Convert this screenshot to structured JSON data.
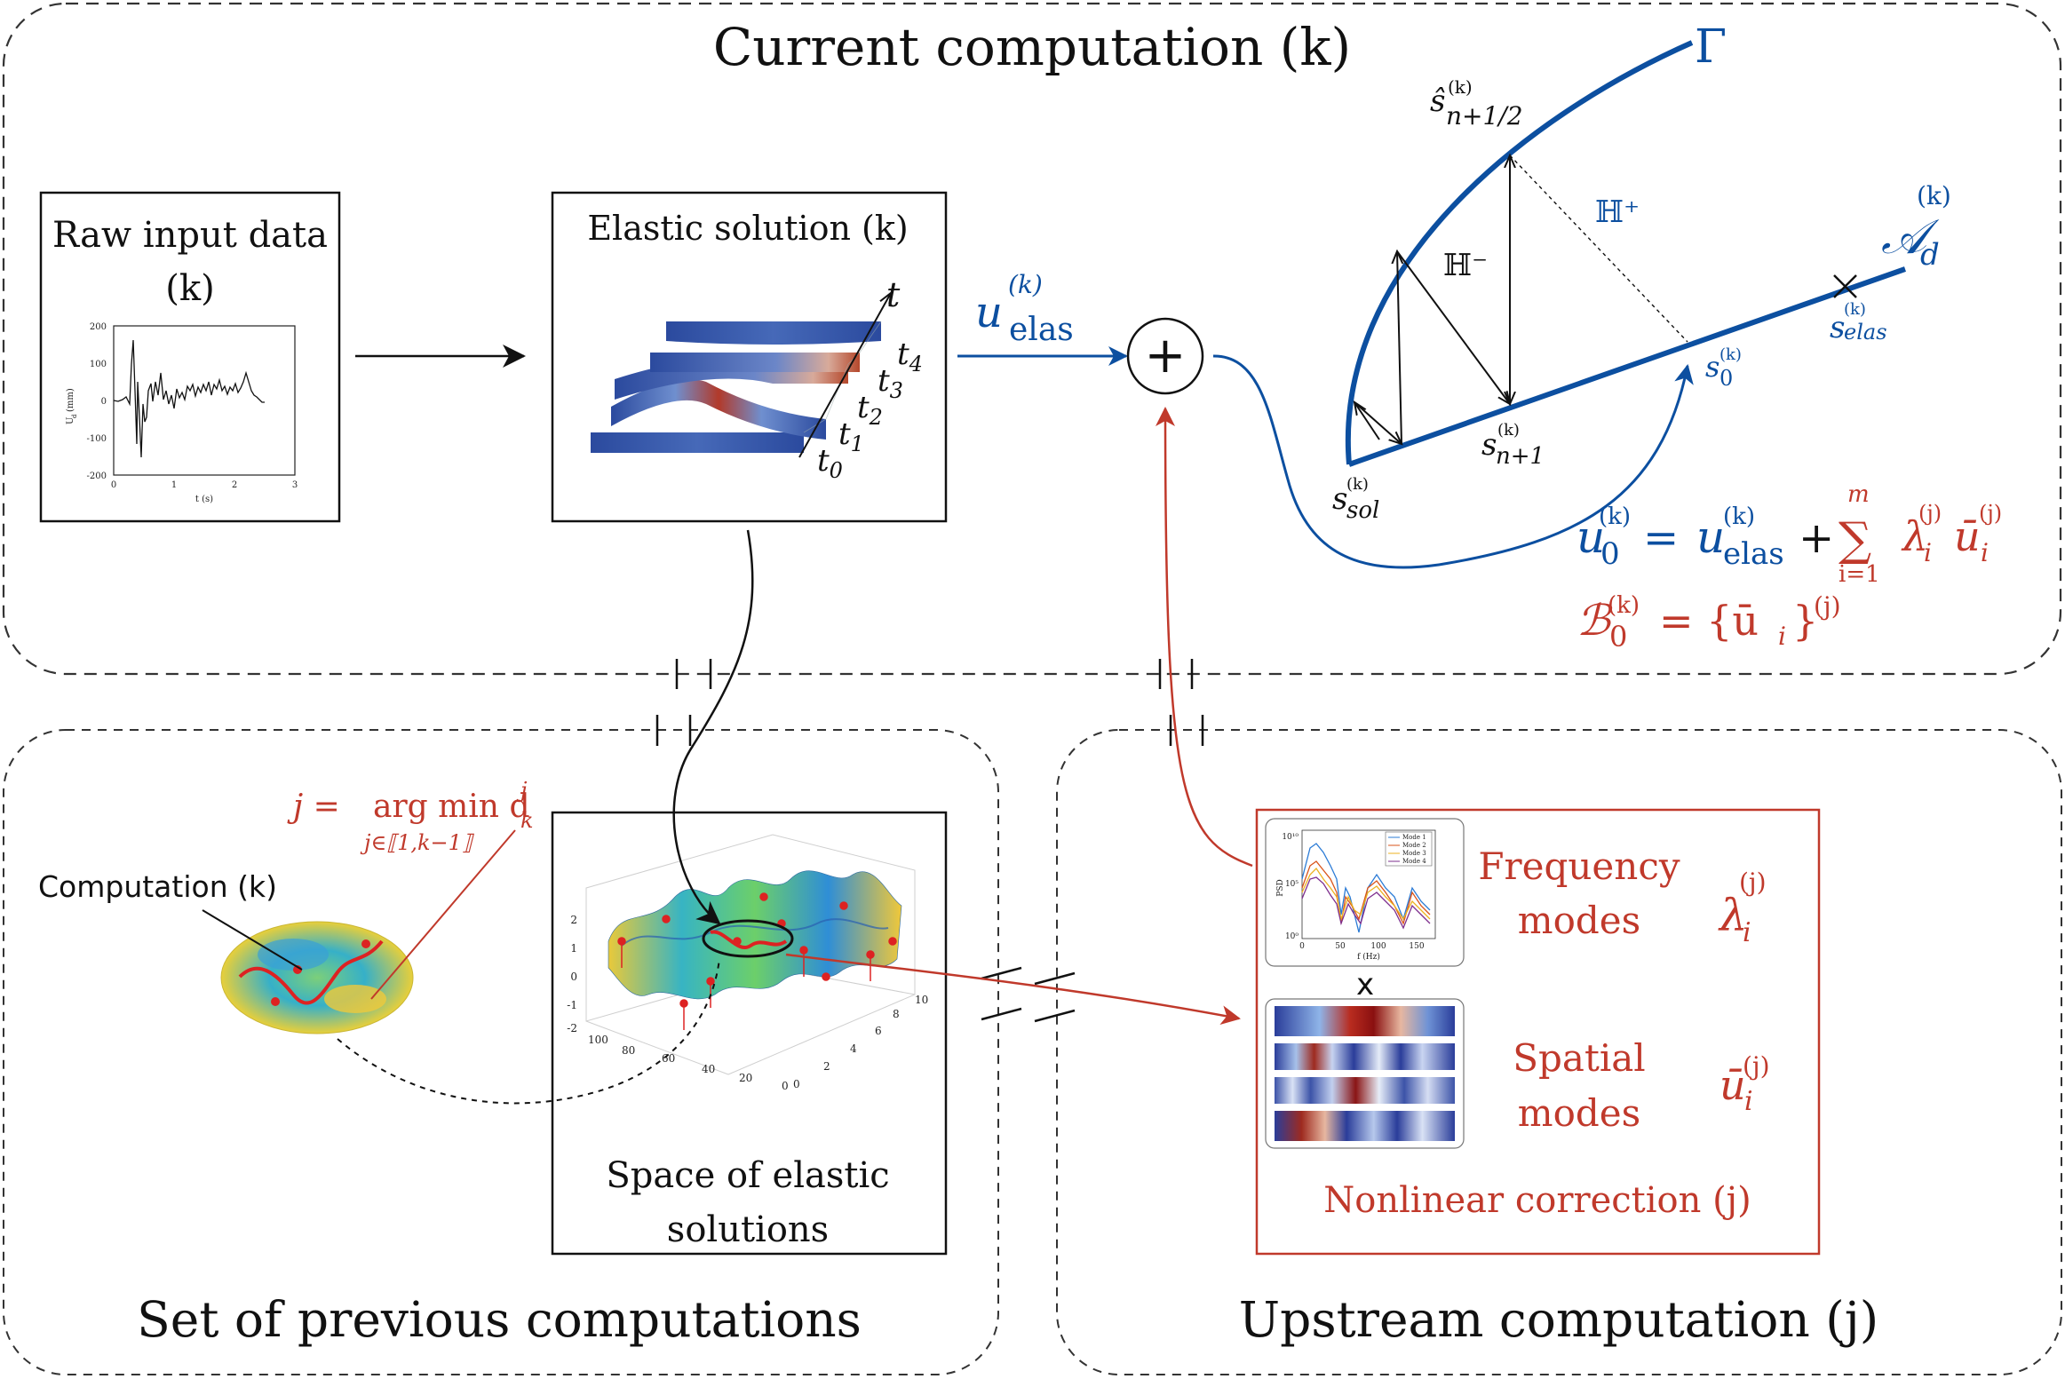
{
  "panels": {
    "current_title": "Current computation (k)",
    "previous_title": "Set of previous computations",
    "upstream_title": "Upstream computation (j)"
  },
  "raw_input": {
    "title_line1": "Raw input data",
    "title_line2": "(k)",
    "ylabel": "U",
    "ylabel_sub": "d",
    "ylabel_unit": "(mm)",
    "xlabel": "t (s)",
    "yticks": [
      "200",
      "100",
      "0",
      "-100",
      "-200"
    ],
    "xticks": [
      "0",
      "1",
      "2",
      "3"
    ]
  },
  "elastic": {
    "title": "Elastic solution  (k)",
    "axis_label": "t",
    "time_labels": [
      {
        "base": "t",
        "sub": "4"
      },
      {
        "base": "t",
        "sub": "3"
      },
      {
        "base": "t",
        "sub": "2"
      },
      {
        "base": "t",
        "sub": "1"
      },
      {
        "base": "t",
        "sub": "0"
      }
    ]
  },
  "math": {
    "u": "u",
    "elas": "elas",
    "k_sup": "(k)",
    "gamma": "Γ",
    "A": "𝒜",
    "d": "d",
    "s_hat": "ŝ",
    "n_half": "n+1/2",
    "H_plus": "ℍ⁺",
    "H_minus": "ℍ⁻",
    "s": "s",
    "elas_sub": "elas",
    "zero": "0",
    "n1": "n+1",
    "sol": "sol",
    "plus": "+",
    "eq_u0": "u",
    "eq_eq": "=",
    "eq_sum_top": "m",
    "eq_sigma": "∑",
    "eq_sum_bot": "i=1",
    "eq_lambda": "λ",
    "eq_i": "i",
    "eq_j": "(j)",
    "eq_ubar": "ū",
    "eq_B": "ℬ",
    "eq_B_rhs": "= {ū",
    "eq_brace_close": "}"
  },
  "previous": {
    "comp_label": "Computation (k)",
    "argmin_lhs": "j =",
    "argmin_op": "arg min d",
    "argmin_sup": "j",
    "argmin_sub": "k",
    "argmin_under": "j∈⟦1,k−1⟧",
    "space_line1": "Space of elastic",
    "space_line2": "solutions",
    "z_ticks": [
      "2",
      "1",
      "0",
      "-1",
      "-2"
    ],
    "x_ticks": [
      "100",
      "80",
      "60",
      "40",
      "20",
      "0"
    ],
    "y_ticks": [
      "0",
      "2",
      "4",
      "6",
      "8",
      "10"
    ]
  },
  "upstream": {
    "freq_line1": "Frequency",
    "freq_line2": "modes",
    "spatial_line1": "Spatial",
    "spatial_line2": "modes",
    "correction": "Nonlinear correction (j)",
    "times": "x",
    "psd_ylabel": "PSD",
    "psd_xlabel": "f (Hz)",
    "psd_xticks": [
      "0",
      "50",
      "100",
      "150"
    ],
    "psd_yticks": [
      "10¹⁰",
      "10⁵",
      "10⁰"
    ],
    "legend": [
      "Mode 1",
      "Mode 2",
      "Mode 3",
      "Mode 4"
    ]
  },
  "colors": {
    "blue": "#0c4fa0",
    "red": "#c0392b",
    "black": "#111111"
  }
}
